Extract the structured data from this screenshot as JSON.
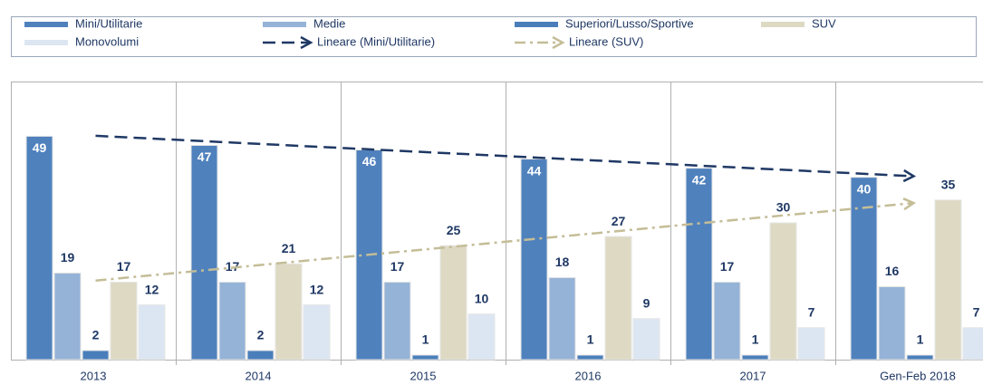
{
  "chart_data": {
    "type": "bar",
    "categories": [
      "2013",
      "2014",
      "2015",
      "2016",
      "2017",
      "Gen-Feb 2018"
    ],
    "series": [
      {
        "name": "Mini/Utilitarie",
        "color": "#4f81bd",
        "values": [
          49,
          47,
          46,
          44,
          42,
          40
        ]
      },
      {
        "name": "Medie",
        "color": "#95b3d7",
        "values": [
          19,
          17,
          17,
          18,
          17,
          16
        ]
      },
      {
        "name": "Superiori/Lusso/Sportive",
        "color": "#4a7ebb",
        "values": [
          2,
          2,
          1,
          1,
          1,
          1
        ]
      },
      {
        "name": "SUV",
        "color": "#ddd9c3",
        "values": [
          17,
          21,
          25,
          27,
          30,
          35
        ]
      },
      {
        "name": "Monovolumi",
        "color": "#dce6f2",
        "values": [
          12,
          12,
          10,
          9,
          7,
          7
        ]
      }
    ],
    "trendlines": [
      {
        "name": "Lineare (Mini/Utilitarie)",
        "of": "Mini/Utilitarie",
        "color": "#1f3864",
        "style": "dashed"
      },
      {
        "name": "Lineare (SUV)",
        "of": "SUV",
        "color": "#c4bd97",
        "style": "dashdot"
      }
    ],
    "ylim": [
      0,
      61
    ]
  }
}
